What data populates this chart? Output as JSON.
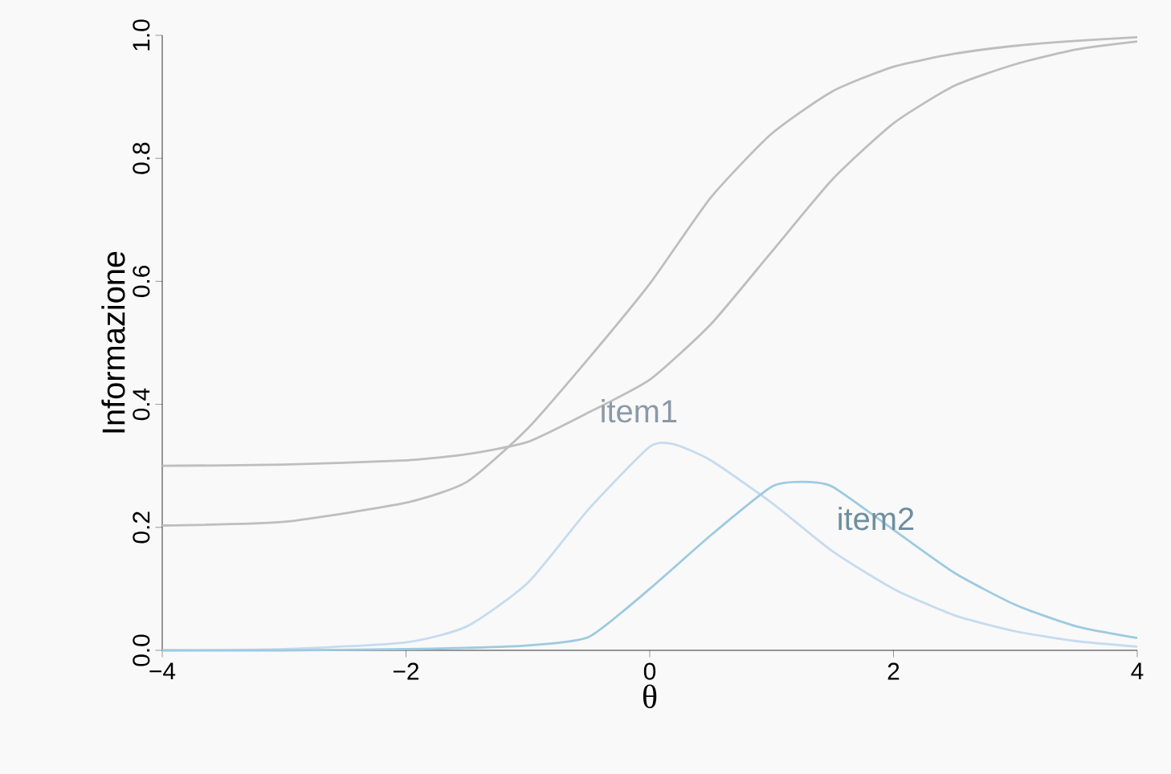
{
  "chart_data": {
    "type": "line",
    "xlabel": "θ",
    "ylabel": "Informazione",
    "xlim": [
      -4,
      4
    ],
    "ylim": [
      0,
      1
    ],
    "xticks": [
      {
        "value": -4,
        "label": "−4"
      },
      {
        "value": -2,
        "label": "−2"
      },
      0,
      2,
      4
    ],
    "yticks": [
      {
        "value": 0,
        "label": "0.0"
      },
      0.2,
      0.4,
      0.6,
      0.8,
      {
        "value": 1,
        "label": "1.0"
      }
    ],
    "grid": false,
    "legend": false,
    "series": [
      {
        "color": "#bebebe",
        "x": [
          -4,
          -3,
          -2,
          -1.5,
          -1,
          -0.5,
          0,
          0.5,
          1,
          1.5,
          2,
          2.5,
          3,
          3.5,
          4
        ],
        "values": [
          0.203,
          0.209,
          0.24,
          0.274,
          0.361,
          0.475,
          0.596,
          0.736,
          0.84,
          0.909,
          0.949,
          0.97,
          0.983,
          0.991,
          0.997
        ]
      },
      {
        "color": "#bebebe",
        "x": [
          -4,
          -3,
          -2,
          -1.5,
          -1,
          -0.5,
          0,
          0.5,
          1,
          1.5,
          2,
          2.5,
          3,
          3.5,
          4
        ],
        "values": [
          0.3,
          0.302,
          0.309,
          0.319,
          0.339,
          0.387,
          0.44,
          0.53,
          0.648,
          0.766,
          0.857,
          0.918,
          0.953,
          0.977,
          0.99
        ]
      },
      {
        "name": "item1",
        "color": "#c6dbef",
        "x": [
          -4,
          -3,
          -2,
          -1.5,
          -1,
          -0.5,
          0,
          0.2,
          0.5,
          1,
          1.5,
          2,
          2.5,
          3,
          3.5,
          4
        ],
        "values": [
          0.0,
          0.002,
          0.013,
          0.039,
          0.11,
          0.23,
          0.331,
          0.335,
          0.309,
          0.24,
          0.161,
          0.1,
          0.057,
          0.031,
          0.015,
          0.006
        ]
      },
      {
        "name": "item2",
        "color": "#9ecae1",
        "x": [
          -4,
          -3,
          -2,
          -1.5,
          -1,
          -0.5,
          0,
          0.5,
          1,
          1.25,
          1.5,
          2,
          2.5,
          3,
          3.5,
          4
        ],
        "values": [
          0.0,
          0.0,
          0.002,
          0.004,
          0.008,
          0.022,
          0.1,
          0.187,
          0.266,
          0.274,
          0.266,
          0.196,
          0.126,
          0.074,
          0.039,
          0.02
        ]
      }
    ]
  }
}
